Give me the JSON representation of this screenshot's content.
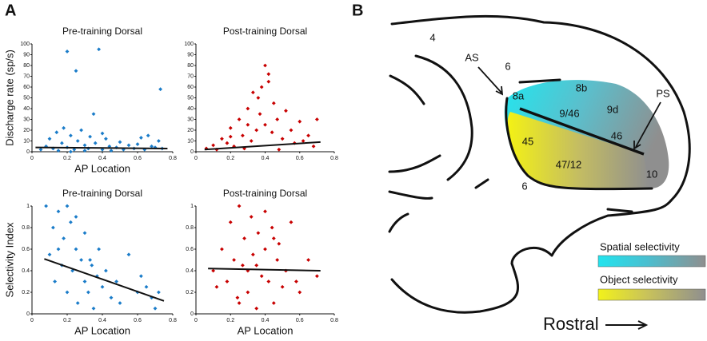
{
  "panel_labels": [
    "A",
    "B"
  ],
  "chart_data": [
    {
      "type": "scatter",
      "title": "Pre-training Dorsal",
      "x_label": "AP Location",
      "y_label": "Discharge rate (sp/s)",
      "xlim": [
        0,
        0.8
      ],
      "xticks": [
        0,
        0.2,
        0.4,
        0.6,
        0.8
      ],
      "ylim": [
        0,
        100
      ],
      "yticks": [
        0,
        10,
        20,
        30,
        40,
        50,
        60,
        70,
        80,
        90,
        100
      ],
      "color": "#1a7cc9",
      "points": {
        "x": [
          0.05,
          0.08,
          0.1,
          0.12,
          0.14,
          0.15,
          0.17,
          0.18,
          0.2,
          0.2,
          0.22,
          0.24,
          0.25,
          0.26,
          0.28,
          0.3,
          0.32,
          0.33,
          0.35,
          0.36,
          0.38,
          0.4,
          0.42,
          0.44,
          0.45,
          0.48,
          0.5,
          0.52,
          0.55,
          0.58,
          0.6,
          0.62,
          0.64,
          0.66,
          0.68,
          0.7,
          0.72,
          0.73,
          0.74,
          0.3,
          0.22,
          0.4
        ],
        "y": [
          2,
          5,
          12,
          3,
          18,
          1,
          8,
          22,
          93,
          4,
          15,
          2,
          75,
          10,
          20,
          6,
          3,
          14,
          35,
          8,
          95,
          2,
          12,
          5,
          1,
          4,
          9,
          2,
          6,
          3,
          7,
          13,
          2,
          15,
          5,
          4,
          10,
          58,
          3,
          1,
          0,
          17
        ]
      },
      "fit": {
        "x": [
          0.02,
          0.77
        ],
        "y": [
          4,
          3
        ]
      }
    },
    {
      "type": "scatter",
      "title": "Post-training Dorsal",
      "xlim": [
        0,
        0.8
      ],
      "xticks": [
        0,
        0.2,
        0.4,
        0.6,
        0.8
      ],
      "ylim": [
        0,
        100
      ],
      "yticks": [
        0,
        10,
        20,
        30,
        40,
        50,
        60,
        70,
        80,
        90,
        100
      ],
      "color": "#c80000",
      "points": {
        "x": [
          0.06,
          0.1,
          0.12,
          0.15,
          0.18,
          0.2,
          0.22,
          0.25,
          0.27,
          0.3,
          0.32,
          0.33,
          0.35,
          0.37,
          0.38,
          0.4,
          0.4,
          0.42,
          0.44,
          0.45,
          0.47,
          0.5,
          0.52,
          0.55,
          0.57,
          0.6,
          0.62,
          0.65,
          0.68,
          0.7,
          0.28,
          0.36,
          0.48,
          0.3,
          0.2,
          0.42
        ],
        "y": [
          3,
          6,
          2,
          12,
          8,
          22,
          5,
          30,
          15,
          40,
          10,
          55,
          20,
          35,
          60,
          80,
          25,
          72,
          18,
          45,
          30,
          12,
          38,
          20,
          8,
          28,
          10,
          15,
          5,
          30,
          3,
          50,
          2,
          25,
          14,
          65
        ]
      },
      "fit": {
        "x": [
          0.05,
          0.72
        ],
        "y": [
          2,
          9
        ]
      }
    },
    {
      "type": "scatter",
      "title": "Pre-training Dorsal",
      "x_label": "AP Location",
      "y_label": "Selectivity Index",
      "xlim": [
        0,
        0.8
      ],
      "xticks": [
        0,
        0.2,
        0.4,
        0.6,
        0.8
      ],
      "ylim": [
        0,
        1
      ],
      "yticks": [
        0,
        0.2,
        0.4,
        0.6,
        0.8,
        1
      ],
      "color": "#1a7cc9",
      "points": {
        "x": [
          0.08,
          0.1,
          0.12,
          0.13,
          0.15,
          0.17,
          0.18,
          0.2,
          0.22,
          0.23,
          0.25,
          0.26,
          0.28,
          0.3,
          0.3,
          0.32,
          0.34,
          0.35,
          0.37,
          0.38,
          0.4,
          0.42,
          0.45,
          0.48,
          0.5,
          0.55,
          0.6,
          0.62,
          0.65,
          0.68,
          0.7,
          0.72,
          0.2,
          0.25,
          0.15,
          0.33
        ],
        "y": [
          1,
          0.55,
          0.8,
          0.3,
          0.95,
          0.45,
          0.7,
          0.2,
          0.85,
          0.4,
          0.6,
          0.1,
          0.5,
          0.75,
          0.3,
          0.2,
          0.45,
          0.05,
          0.35,
          0.6,
          0.25,
          0.4,
          0.15,
          0.3,
          0.1,
          0.55,
          0.2,
          0.35,
          0.25,
          0.15,
          0.05,
          0.2,
          1,
          0.9,
          0.6,
          0.5
        ]
      },
      "fit": {
        "x": [
          0.07,
          0.75
        ],
        "y": [
          0.51,
          0.12
        ]
      }
    },
    {
      "type": "scatter",
      "title": "Post-training Dorsal",
      "x_label": "AP Location",
      "xlim": [
        0,
        0.8
      ],
      "xticks": [
        0,
        0.2,
        0.4,
        0.6,
        0.8
      ],
      "ylim": [
        0,
        1
      ],
      "yticks": [
        0,
        0.2,
        0.4,
        0.6,
        0.8,
        1
      ],
      "color": "#c80000",
      "points": {
        "x": [
          0.1,
          0.12,
          0.15,
          0.18,
          0.2,
          0.22,
          0.24,
          0.25,
          0.27,
          0.28,
          0.3,
          0.32,
          0.33,
          0.35,
          0.36,
          0.38,
          0.4,
          0.4,
          0.42,
          0.44,
          0.45,
          0.47,
          0.48,
          0.5,
          0.52,
          0.55,
          0.58,
          0.6,
          0.65,
          0.7,
          0.3,
          0.35,
          0.25,
          0.45
        ],
        "y": [
          0.4,
          0.25,
          0.6,
          0.3,
          0.85,
          0.5,
          0.15,
          1,
          0.45,
          0.7,
          0.2,
          0.9,
          0.55,
          0.05,
          0.75,
          0.35,
          0.95,
          0.6,
          0.3,
          0.8,
          0.1,
          0.5,
          0.65,
          0.25,
          0.4,
          0.85,
          0.3,
          0.2,
          0.5,
          0.35,
          0.4,
          0.45,
          0.1,
          0.7
        ]
      },
      "fit": {
        "x": [
          0.07,
          0.72
        ],
        "y": [
          0.42,
          0.4
        ]
      }
    }
  ],
  "diagram": {
    "areas": [
      "4",
      "6",
      "AS",
      "8a",
      "8b",
      "9/46",
      "9d",
      "46",
      "PS",
      "45",
      "47/12",
      "6",
      "10"
    ],
    "legend": [
      "Spatial selectivity",
      "Object selectivity"
    ],
    "direction": "Rostral"
  }
}
